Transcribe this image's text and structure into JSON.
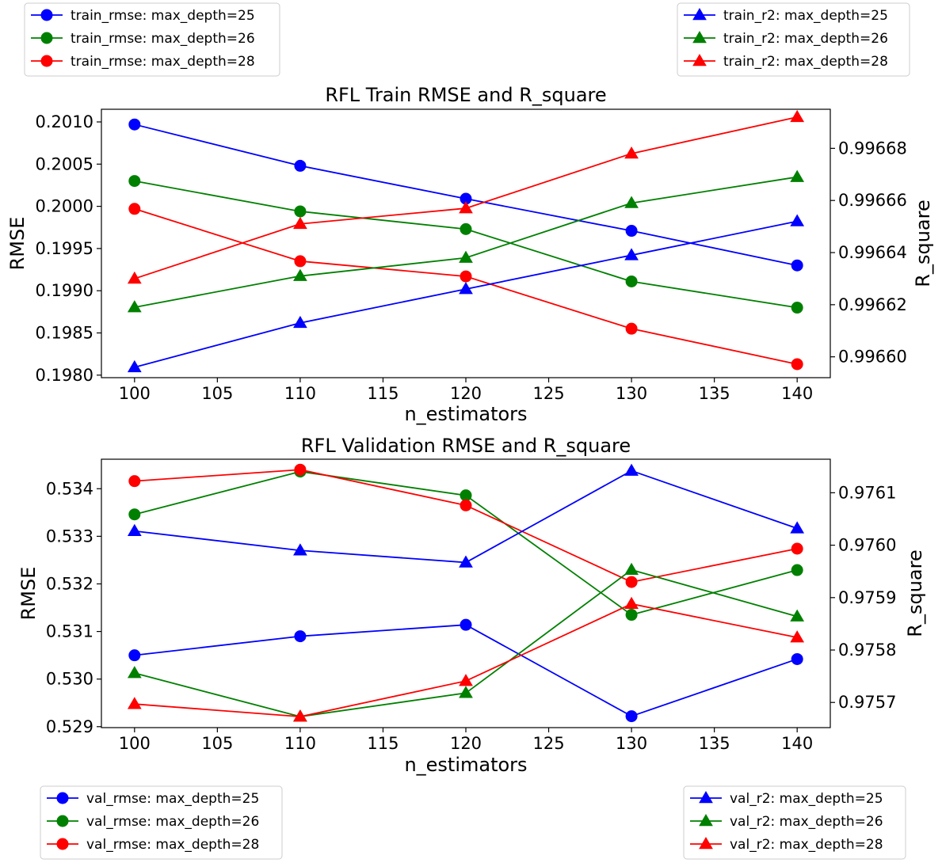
{
  "colors": {
    "max_depth=25": "#0000ff",
    "max_depth=26": "#008000",
    "max_depth=28": "#ff0000"
  },
  "chart_data": [
    {
      "type": "line",
      "title": "RFL Train RMSE and R_square",
      "xlabel": "n_estimators",
      "ylabel_left": "RMSE",
      "ylabel_right": "R_square",
      "x": [
        100,
        110,
        120,
        130,
        140
      ],
      "xlim": [
        98,
        142
      ],
      "xticks": [
        "100",
        "105",
        "110",
        "115",
        "120",
        "125",
        "130",
        "135",
        "140"
      ],
      "ylim_left": [
        0.19797,
        0.20115
      ],
      "yticks_left": [
        "0.1980",
        "0.1985",
        "0.1990",
        "0.1995",
        "0.2000",
        "0.2005",
        "0.2010"
      ],
      "ylim_right": [
        0.996592,
        0.996695
      ],
      "yticks_right": [
        "0.99660",
        "0.99662",
        "0.99664",
        "0.99666",
        "0.99668"
      ],
      "grid": false,
      "legend_left": {
        "placement": "top-left, outside",
        "entries": [
          "train_rmse: max_depth=25",
          "train_rmse: max_depth=26",
          "train_rmse: max_depth=28"
        ]
      },
      "legend_right": {
        "placement": "top-right, outside",
        "entries": [
          "train_r2: max_depth=25",
          "train_r2: max_depth=26",
          "train_r2: max_depth=28"
        ]
      },
      "series_left": [
        {
          "name": "train_rmse: max_depth=25",
          "color_key": "max_depth=25",
          "marker": "circle",
          "values": [
            0.20097,
            0.20048,
            0.20009,
            0.19971,
            0.1993
          ]
        },
        {
          "name": "train_rmse: max_depth=26",
          "color_key": "max_depth=26",
          "marker": "circle",
          "values": [
            0.2003,
            0.19994,
            0.19973,
            0.19911,
            0.1988
          ]
        },
        {
          "name": "train_rmse: max_depth=28",
          "color_key": "max_depth=28",
          "marker": "circle",
          "values": [
            0.19997,
            0.19935,
            0.19917,
            0.19855,
            0.19813
          ]
        }
      ],
      "series_right": [
        {
          "name": "train_r2: max_depth=25",
          "color_key": "max_depth=25",
          "marker": "triangle",
          "values": [
            0.996596,
            0.996613,
            0.996626,
            0.996639,
            0.996652
          ]
        },
        {
          "name": "train_r2: max_depth=26",
          "color_key": "max_depth=26",
          "marker": "triangle",
          "values": [
            0.996619,
            0.996631,
            0.996638,
            0.996659,
            0.996669
          ]
        },
        {
          "name": "train_r2: max_depth=28",
          "color_key": "max_depth=28",
          "marker": "triangle",
          "values": [
            0.99663,
            0.996651,
            0.996657,
            0.996678,
            0.996692
          ]
        }
      ]
    },
    {
      "type": "line",
      "title": "RFL Validation RMSE and R_square",
      "xlabel": "n_estimators",
      "ylabel_left": "RMSE",
      "ylabel_right": "R_square",
      "x": [
        100,
        110,
        120,
        130,
        140
      ],
      "xlim": [
        98,
        142
      ],
      "xticks": [
        "100",
        "105",
        "110",
        "115",
        "120",
        "125",
        "130",
        "135",
        "140"
      ],
      "ylim_left": [
        0.52898,
        0.53462
      ],
      "yticks_left": [
        "0.529",
        "0.530",
        "0.531",
        "0.532",
        "0.533",
        "0.534"
      ],
      "ylim_right": [
        0.975652,
        0.976164
      ],
      "yticks_right": [
        "0.9757",
        "0.9758",
        "0.9759",
        "0.9760",
        "0.9761"
      ],
      "grid": false,
      "legend_left": {
        "placement": "bottom-left, outside",
        "entries": [
          "val_rmse: max_depth=25",
          "val_rmse: max_depth=26",
          "val_rmse: max_depth=28"
        ]
      },
      "legend_right": {
        "placement": "bottom-right, outside",
        "entries": [
          "val_r2: max_depth=25",
          "val_r2: max_depth=26",
          "val_r2: max_depth=28"
        ]
      },
      "series_left": [
        {
          "name": "val_rmse: max_depth=25",
          "color_key": "max_depth=25",
          "marker": "circle",
          "values": [
            0.5305,
            0.5309,
            0.53114,
            0.52922,
            0.53042
          ]
        },
        {
          "name": "val_rmse: max_depth=26",
          "color_key": "max_depth=26",
          "marker": "circle",
          "values": [
            0.53346,
            0.53436,
            0.53386,
            0.53135,
            0.53229
          ]
        },
        {
          "name": "val_rmse: max_depth=28",
          "color_key": "max_depth=28",
          "marker": "circle",
          "values": [
            0.53416,
            0.5344,
            0.53365,
            0.53204,
            0.53274
          ]
        }
      ],
      "series_right": [
        {
          "name": "val_r2: max_depth=25",
          "color_key": "max_depth=25",
          "marker": "triangle",
          "values": [
            0.976027,
            0.97599,
            0.975967,
            0.976142,
            0.976032
          ]
        },
        {
          "name": "val_r2: max_depth=26",
          "color_key": "max_depth=26",
          "marker": "triangle",
          "values": [
            0.975756,
            0.975673,
            0.975718,
            0.975953,
            0.975864
          ]
        },
        {
          "name": "val_r2: max_depth=28",
          "color_key": "max_depth=28",
          "marker": "triangle",
          "values": [
            0.975697,
            0.975673,
            0.975741,
            0.975888,
            0.975824
          ]
        }
      ]
    }
  ]
}
